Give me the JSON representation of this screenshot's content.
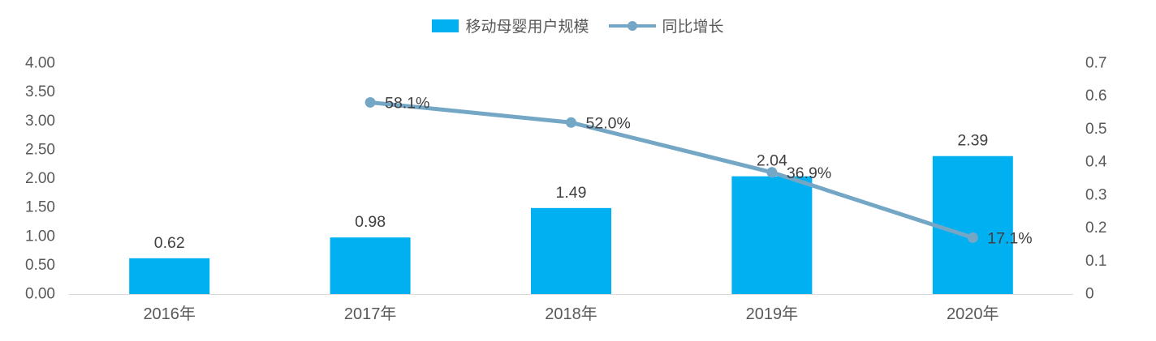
{
  "colors": {
    "bar": "#00B0F0",
    "line": "#74A7C6",
    "axis_line": "#D9D9D9",
    "tick_text": "#595959",
    "category_text": "#595959",
    "data_label_text": "#404040",
    "background": "#FFFFFF"
  },
  "legend": {
    "bar_label": "移动母婴用户规模",
    "line_label": "同比增长"
  },
  "chart_data": {
    "type": "bar",
    "subtype": "combo-bar-line",
    "title": "",
    "categories": [
      "2016年",
      "2017年",
      "2018年",
      "2019年",
      "2020年"
    ],
    "series": [
      {
        "name": "移动母婴用户规模",
        "type": "bar",
        "axis": "left",
        "color": "#00B0F0",
        "values": [
          0.62,
          0.98,
          1.49,
          2.04,
          2.39
        ],
        "labels": [
          "0.62",
          "0.98",
          "1.49",
          "2.04",
          "2.39"
        ]
      },
      {
        "name": "同比增长",
        "type": "line",
        "axis": "right",
        "color": "#74A7C6",
        "values": [
          null,
          0.581,
          0.52,
          0.369,
          0.171
        ],
        "labels": [
          null,
          "58.1%",
          "52.0%",
          "36.9%",
          "17.1%"
        ]
      }
    ],
    "left_axis": {
      "min": 0,
      "max": 4,
      "ticks": [
        "0.00",
        "0.50",
        "1.00",
        "1.50",
        "2.00",
        "2.50",
        "3.00",
        "3.50",
        "4.00"
      ]
    },
    "right_axis": {
      "min": 0,
      "max": 0.7,
      "ticks": [
        "0",
        "0.1",
        "0.2",
        "0.3",
        "0.4",
        "0.5",
        "0.6",
        "0.7"
      ]
    },
    "legend_position": "top",
    "grid": "off"
  }
}
